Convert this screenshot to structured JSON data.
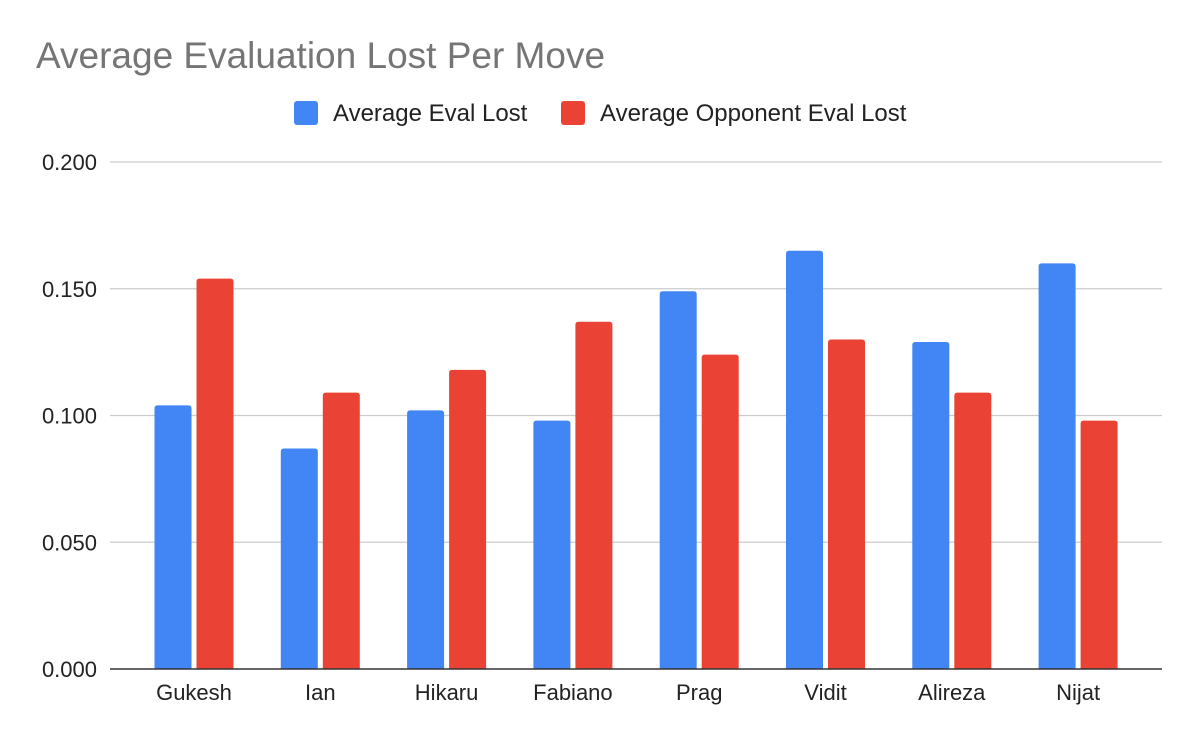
{
  "chart_data": {
    "type": "bar",
    "title": "Average Evaluation Lost Per Move",
    "xlabel": "",
    "ylabel": "",
    "categories": [
      "Gukesh",
      "Ian",
      "Hikaru",
      "Fabiano",
      "Prag",
      "Vidit",
      "Alireza",
      "Nijat"
    ],
    "series": [
      {
        "name": "Average Eval Lost",
        "color": "#4285F4",
        "values": [
          0.104,
          0.087,
          0.102,
          0.098,
          0.149,
          0.165,
          0.129,
          0.16
        ]
      },
      {
        "name": "Average Opponent Eval Lost",
        "color": "#EA4335",
        "values": [
          0.154,
          0.109,
          0.118,
          0.137,
          0.124,
          0.13,
          0.109,
          0.098
        ]
      }
    ],
    "ylim": [
      0,
      0.2
    ],
    "yticks": [
      "0.000",
      "0.050",
      "0.100",
      "0.150",
      "0.200"
    ],
    "ytick_values": [
      0,
      0.05,
      0.1,
      0.15,
      0.2
    ],
    "grid": true,
    "legend_position": "top-center"
  }
}
